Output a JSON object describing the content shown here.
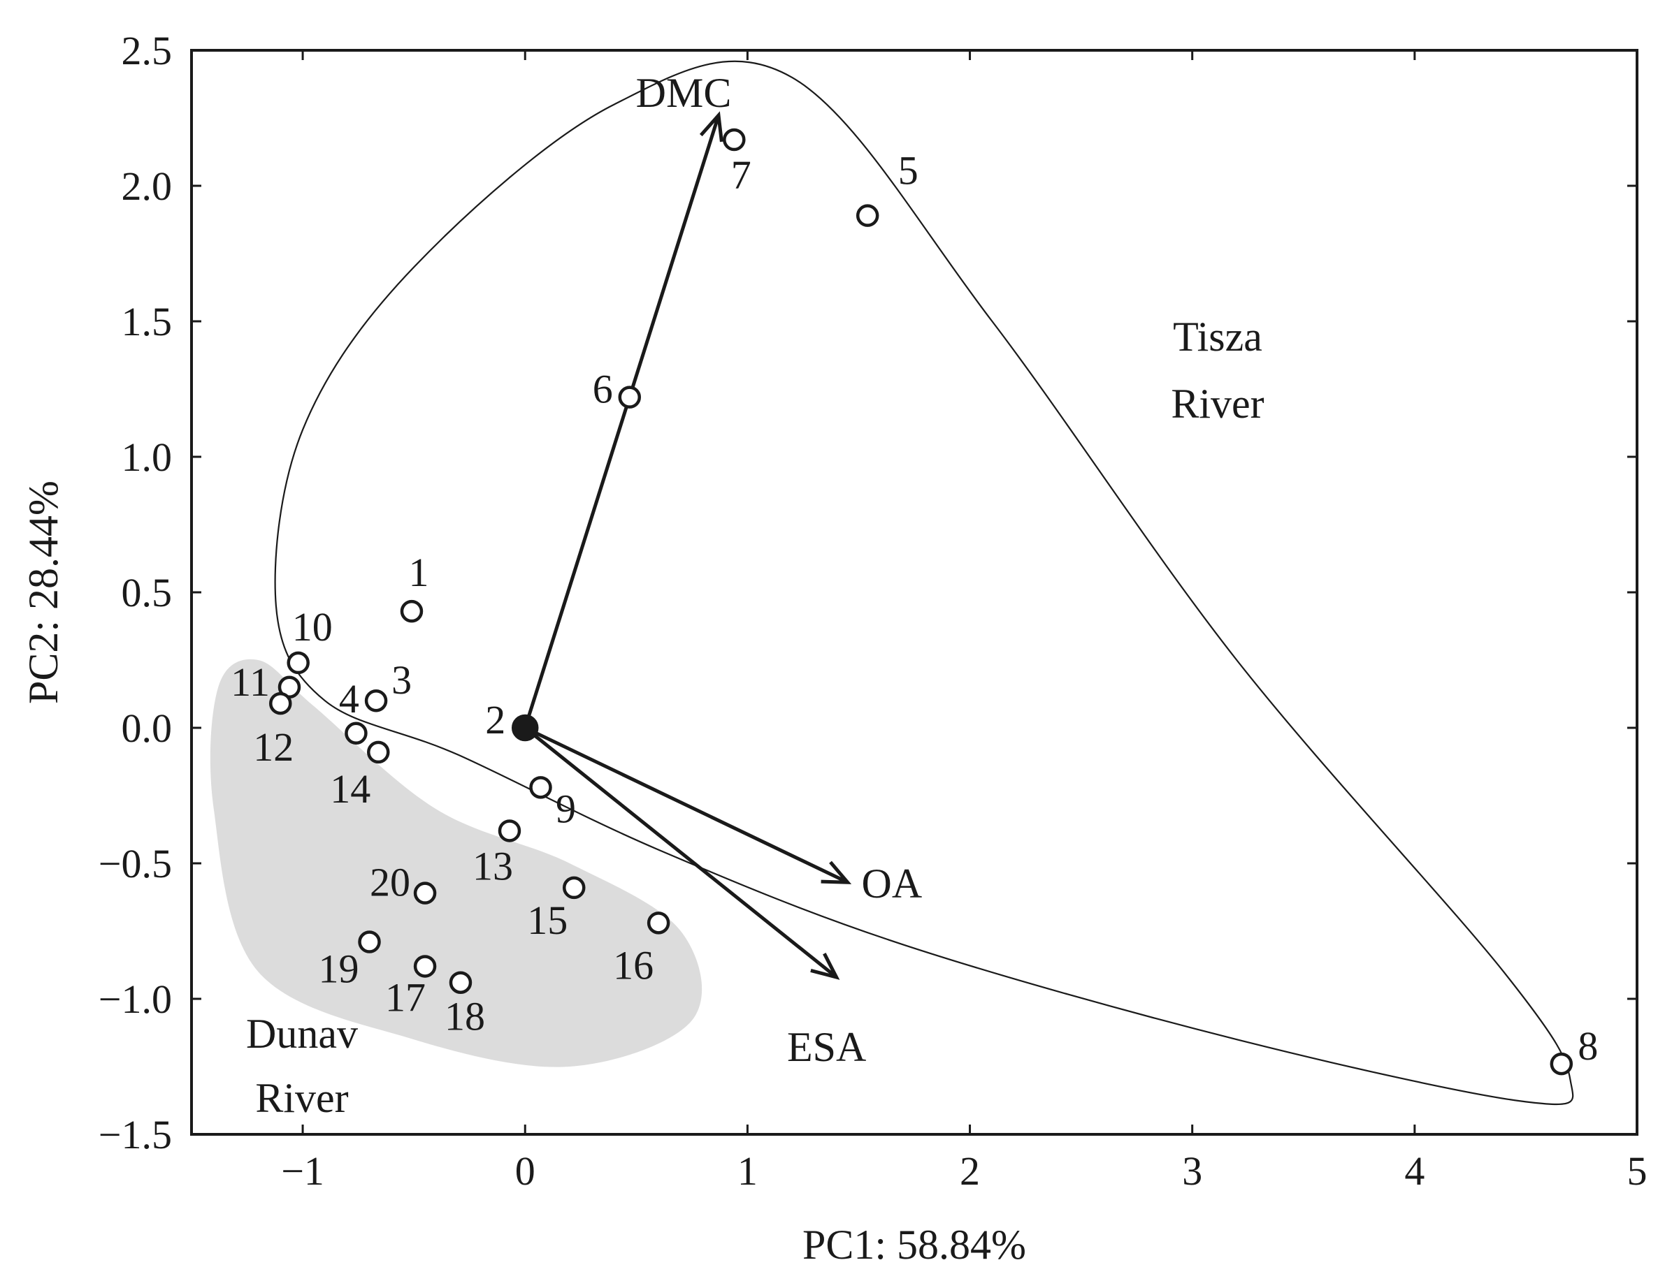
{
  "chart_data": {
    "type": "scatter",
    "subtype": "pca-biplot",
    "xlabel": "PC1: 58.84%",
    "ylabel": "PC2: 28.44%",
    "xlim": [
      -1.5,
      5
    ],
    "ylim": [
      -1.5,
      2.5
    ],
    "xticks": [
      -1,
      0,
      1,
      2,
      3,
      4,
      5
    ],
    "xtick_labels": [
      "−1",
      "0",
      "1",
      "2",
      "3",
      "4",
      "5"
    ],
    "yticks": [
      -1.5,
      -1.0,
      -0.5,
      0.0,
      0.5,
      1.0,
      1.5,
      2.0,
      2.5
    ],
    "ytick_labels": [
      "−1.5",
      "−1.0",
      "−0.5",
      "0.0",
      "0.5",
      "1.0",
      "1.5",
      "2.0",
      "2.5"
    ],
    "grid": false,
    "points": [
      {
        "id": "1",
        "x": -0.51,
        "y": 0.43
      },
      {
        "id": "2",
        "x": 0.0,
        "y": 0.0,
        "filled": true
      },
      {
        "id": "3",
        "x": -0.67,
        "y": 0.1
      },
      {
        "id": "4",
        "x": -0.76,
        "y": -0.02
      },
      {
        "id": "5",
        "x": 1.54,
        "y": 1.89
      },
      {
        "id": "6",
        "x": 0.47,
        "y": 1.22
      },
      {
        "id": "7",
        "x": 0.94,
        "y": 2.17
      },
      {
        "id": "8",
        "x": 4.66,
        "y": -1.24
      },
      {
        "id": "9",
        "x": 0.07,
        "y": -0.22
      },
      {
        "id": "10",
        "x": -1.02,
        "y": 0.24
      },
      {
        "id": "11",
        "x": -1.06,
        "y": 0.15
      },
      {
        "id": "12",
        "x": -1.1,
        "y": 0.09
      },
      {
        "id": "13",
        "x": -0.07,
        "y": -0.38
      },
      {
        "id": "14",
        "x": -0.66,
        "y": -0.09
      },
      {
        "id": "15",
        "x": 0.22,
        "y": -0.59
      },
      {
        "id": "16",
        "x": 0.6,
        "y": -0.72
      },
      {
        "id": "17",
        "x": -0.45,
        "y": -0.88
      },
      {
        "id": "18",
        "x": -0.29,
        "y": -0.94
      },
      {
        "id": "19",
        "x": -0.7,
        "y": -0.79
      },
      {
        "id": "20",
        "x": -0.45,
        "y": -0.61
      }
    ],
    "loadings": [
      {
        "name": "DMC",
        "x": 0.87,
        "y": 2.26
      },
      {
        "name": "OA",
        "x": 1.45,
        "y": -0.57
      },
      {
        "name": "ESA",
        "x": 1.4,
        "y": -0.92
      }
    ],
    "groups": [
      {
        "name_line1": "Tisza",
        "name_line2": "River",
        "style": "outline"
      },
      {
        "name_line1": "Dunav",
        "name_line2": "River",
        "style": "shaded",
        "fill": "#dcdcdc"
      }
    ]
  }
}
